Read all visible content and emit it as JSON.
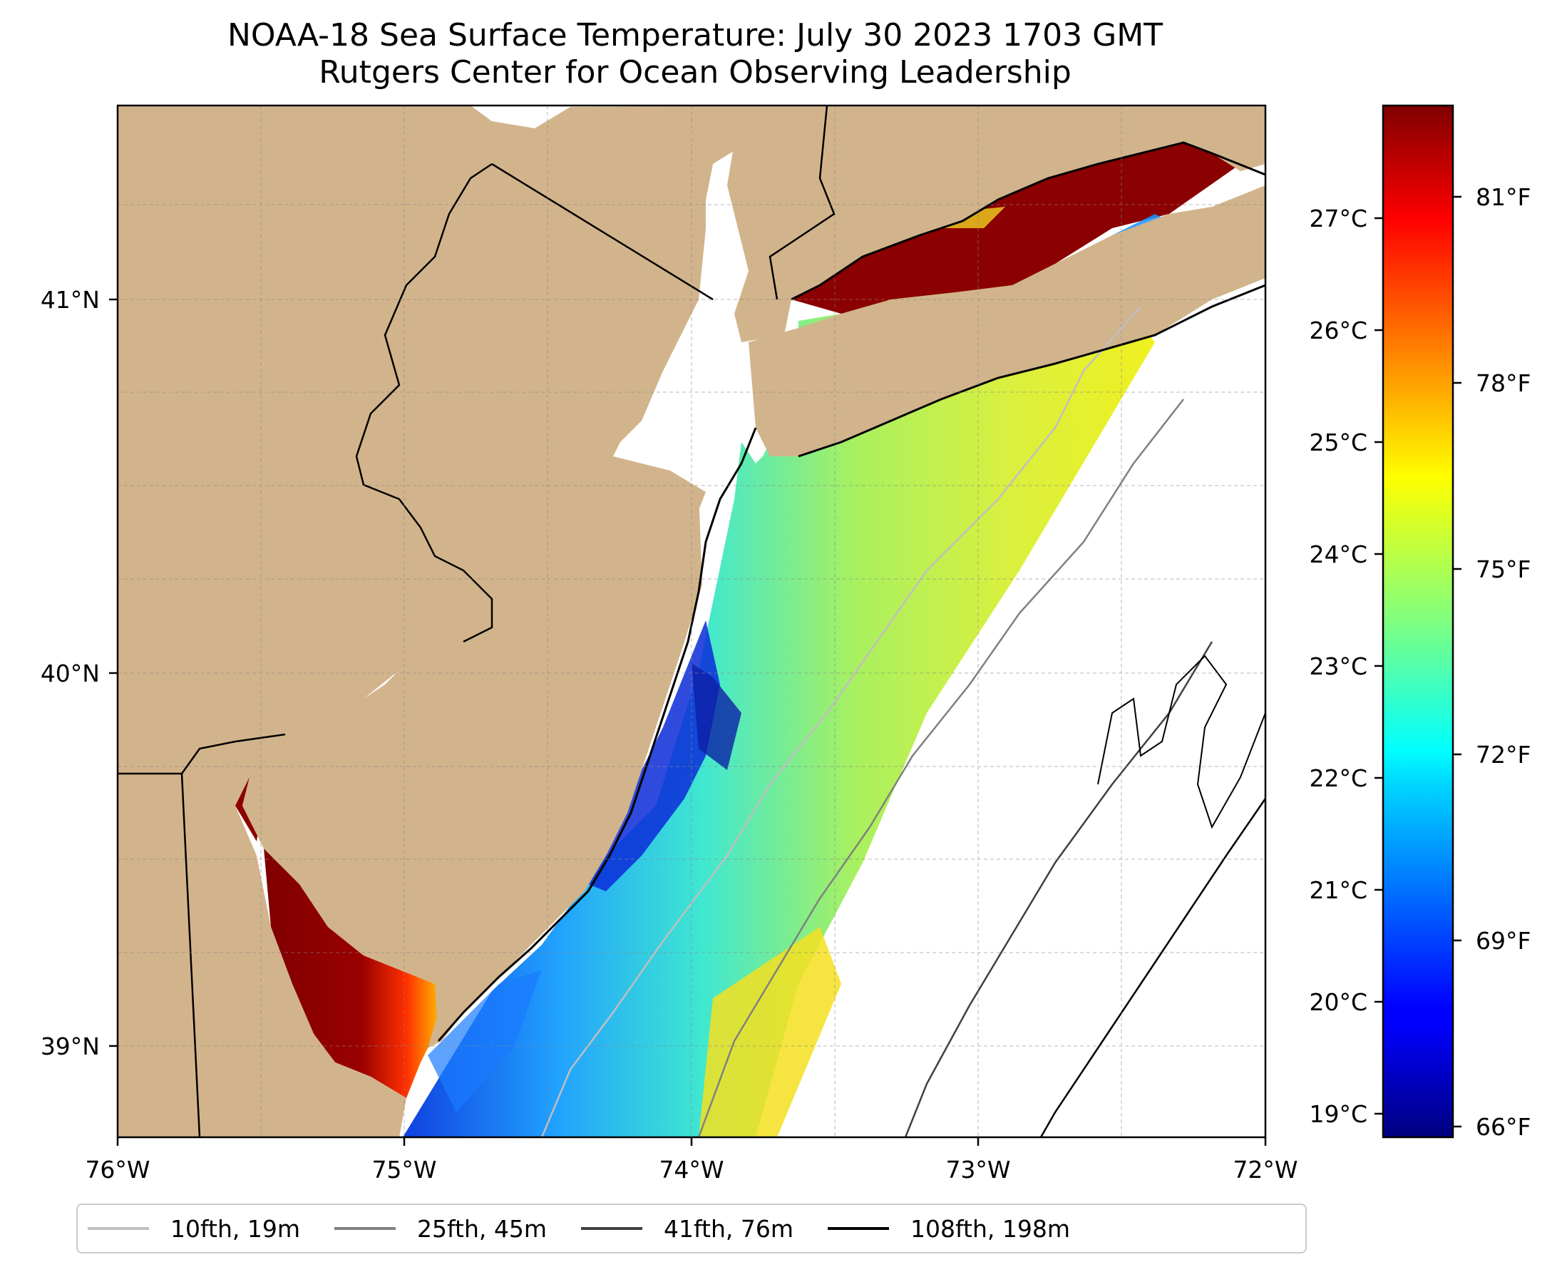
{
  "title": {
    "line1": "NOAA-18 Sea Surface Temperature: July 30 2023 1703 GMT",
    "line2": "Rutgers Center for Ocean Observing Leadership"
  },
  "map": {
    "lon_range": [
      -76,
      -72
    ],
    "lat_range": [
      38.75,
      41.52
    ],
    "lon_ticks": [
      "76°W",
      "75°W",
      "74°W",
      "73°W",
      "72°W"
    ],
    "lat_ticks": [
      "41°N",
      "40°N",
      "39°N"
    ],
    "land_color": "#d2b48c",
    "grid": true
  },
  "colorbar": {
    "colormap": "jet",
    "celsius_range": [
      18.86,
      27.97
    ],
    "celsius_ticks": [
      "19°C",
      "20°C",
      "21°C",
      "22°C",
      "23°C",
      "24°C",
      "25°C",
      "26°C",
      "27°C"
    ],
    "fahrenheit_ticks": [
      "66°F",
      "69°F",
      "72°F",
      "75°F",
      "78°F",
      "81°F"
    ]
  },
  "legend": [
    {
      "label": "10fth, 19m",
      "color": "#bfbfbf"
    },
    {
      "label": "25fth, 45m",
      "color": "#808080"
    },
    {
      "label": "41fth, 76m",
      "color": "#404040"
    },
    {
      "label": "108fth, 198m",
      "color": "#000000"
    }
  ]
}
